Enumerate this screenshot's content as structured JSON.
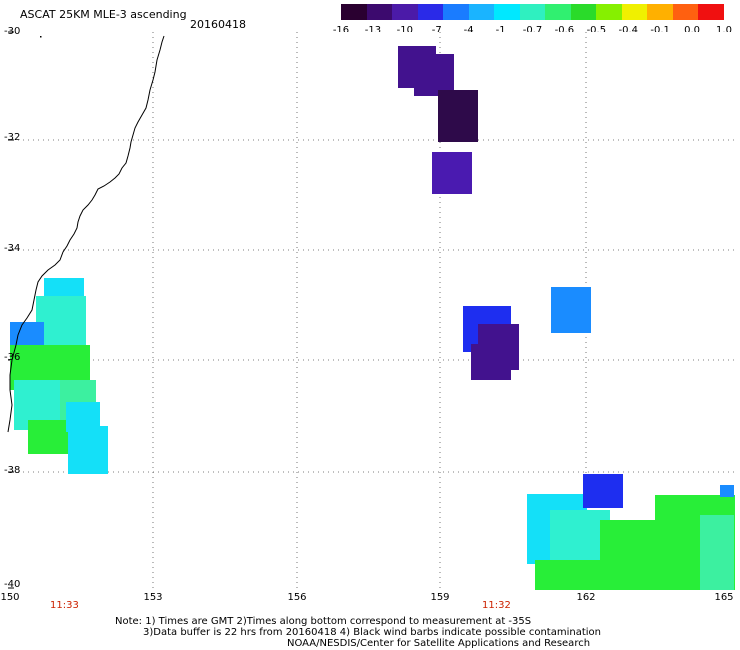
{
  "header": {
    "title": "ASCAT 25KM MLE-3 ascending",
    "date": "20160418"
  },
  "colorbar": {
    "labels": [
      "-16",
      "-13",
      "-10",
      "-7",
      "-4",
      "-1",
      "-0.7",
      "-0.6",
      "-0.5",
      "-0.4",
      "-0.1",
      "0.0",
      "1.0"
    ],
    "colors": [
      "#2a0030",
      "#3c0a6e",
      "#4b1aa8",
      "#2a2ae8",
      "#1a7cff",
      "#1ab4ff",
      "#00e8ff",
      "#2ff0c0",
      "#30f070",
      "#2adb2a",
      "#86f000",
      "#f0f000",
      "#ffb000",
      "#ff6010",
      "#f01010"
    ]
  },
  "map": {
    "lat_labels": [
      "-30",
      "-32",
      "-34",
      "-36",
      "-38",
      "-40"
    ],
    "lon_labels": [
      "150",
      "153",
      "156",
      "159",
      "162",
      "165"
    ],
    "times": [
      "11:33",
      "11:32"
    ],
    "colors": {
      "coast": "#000000",
      "grid": "#444444",
      "dark_purple": "#2e0a4a",
      "purple": "#42128e",
      "indigo": "#4a1ab0",
      "blue": "#1e2ef0",
      "azure": "#1a8cff",
      "cyan": "#14e0f8",
      "aqua": "#2ff0d0",
      "green": "#28ee38",
      "mint": "#3cf0a0"
    }
  },
  "footer": {
    "line1": "Note: 1) Times are GMT 2)Times along bottom correspond to measurement at -35S",
    "line2": "3)Data buffer is 22 hrs from 20160418 4) Black wind barbs indicate possible contamination",
    "line3": "NOAA/NESDIS/Center for Satellite Applications and Research"
  }
}
